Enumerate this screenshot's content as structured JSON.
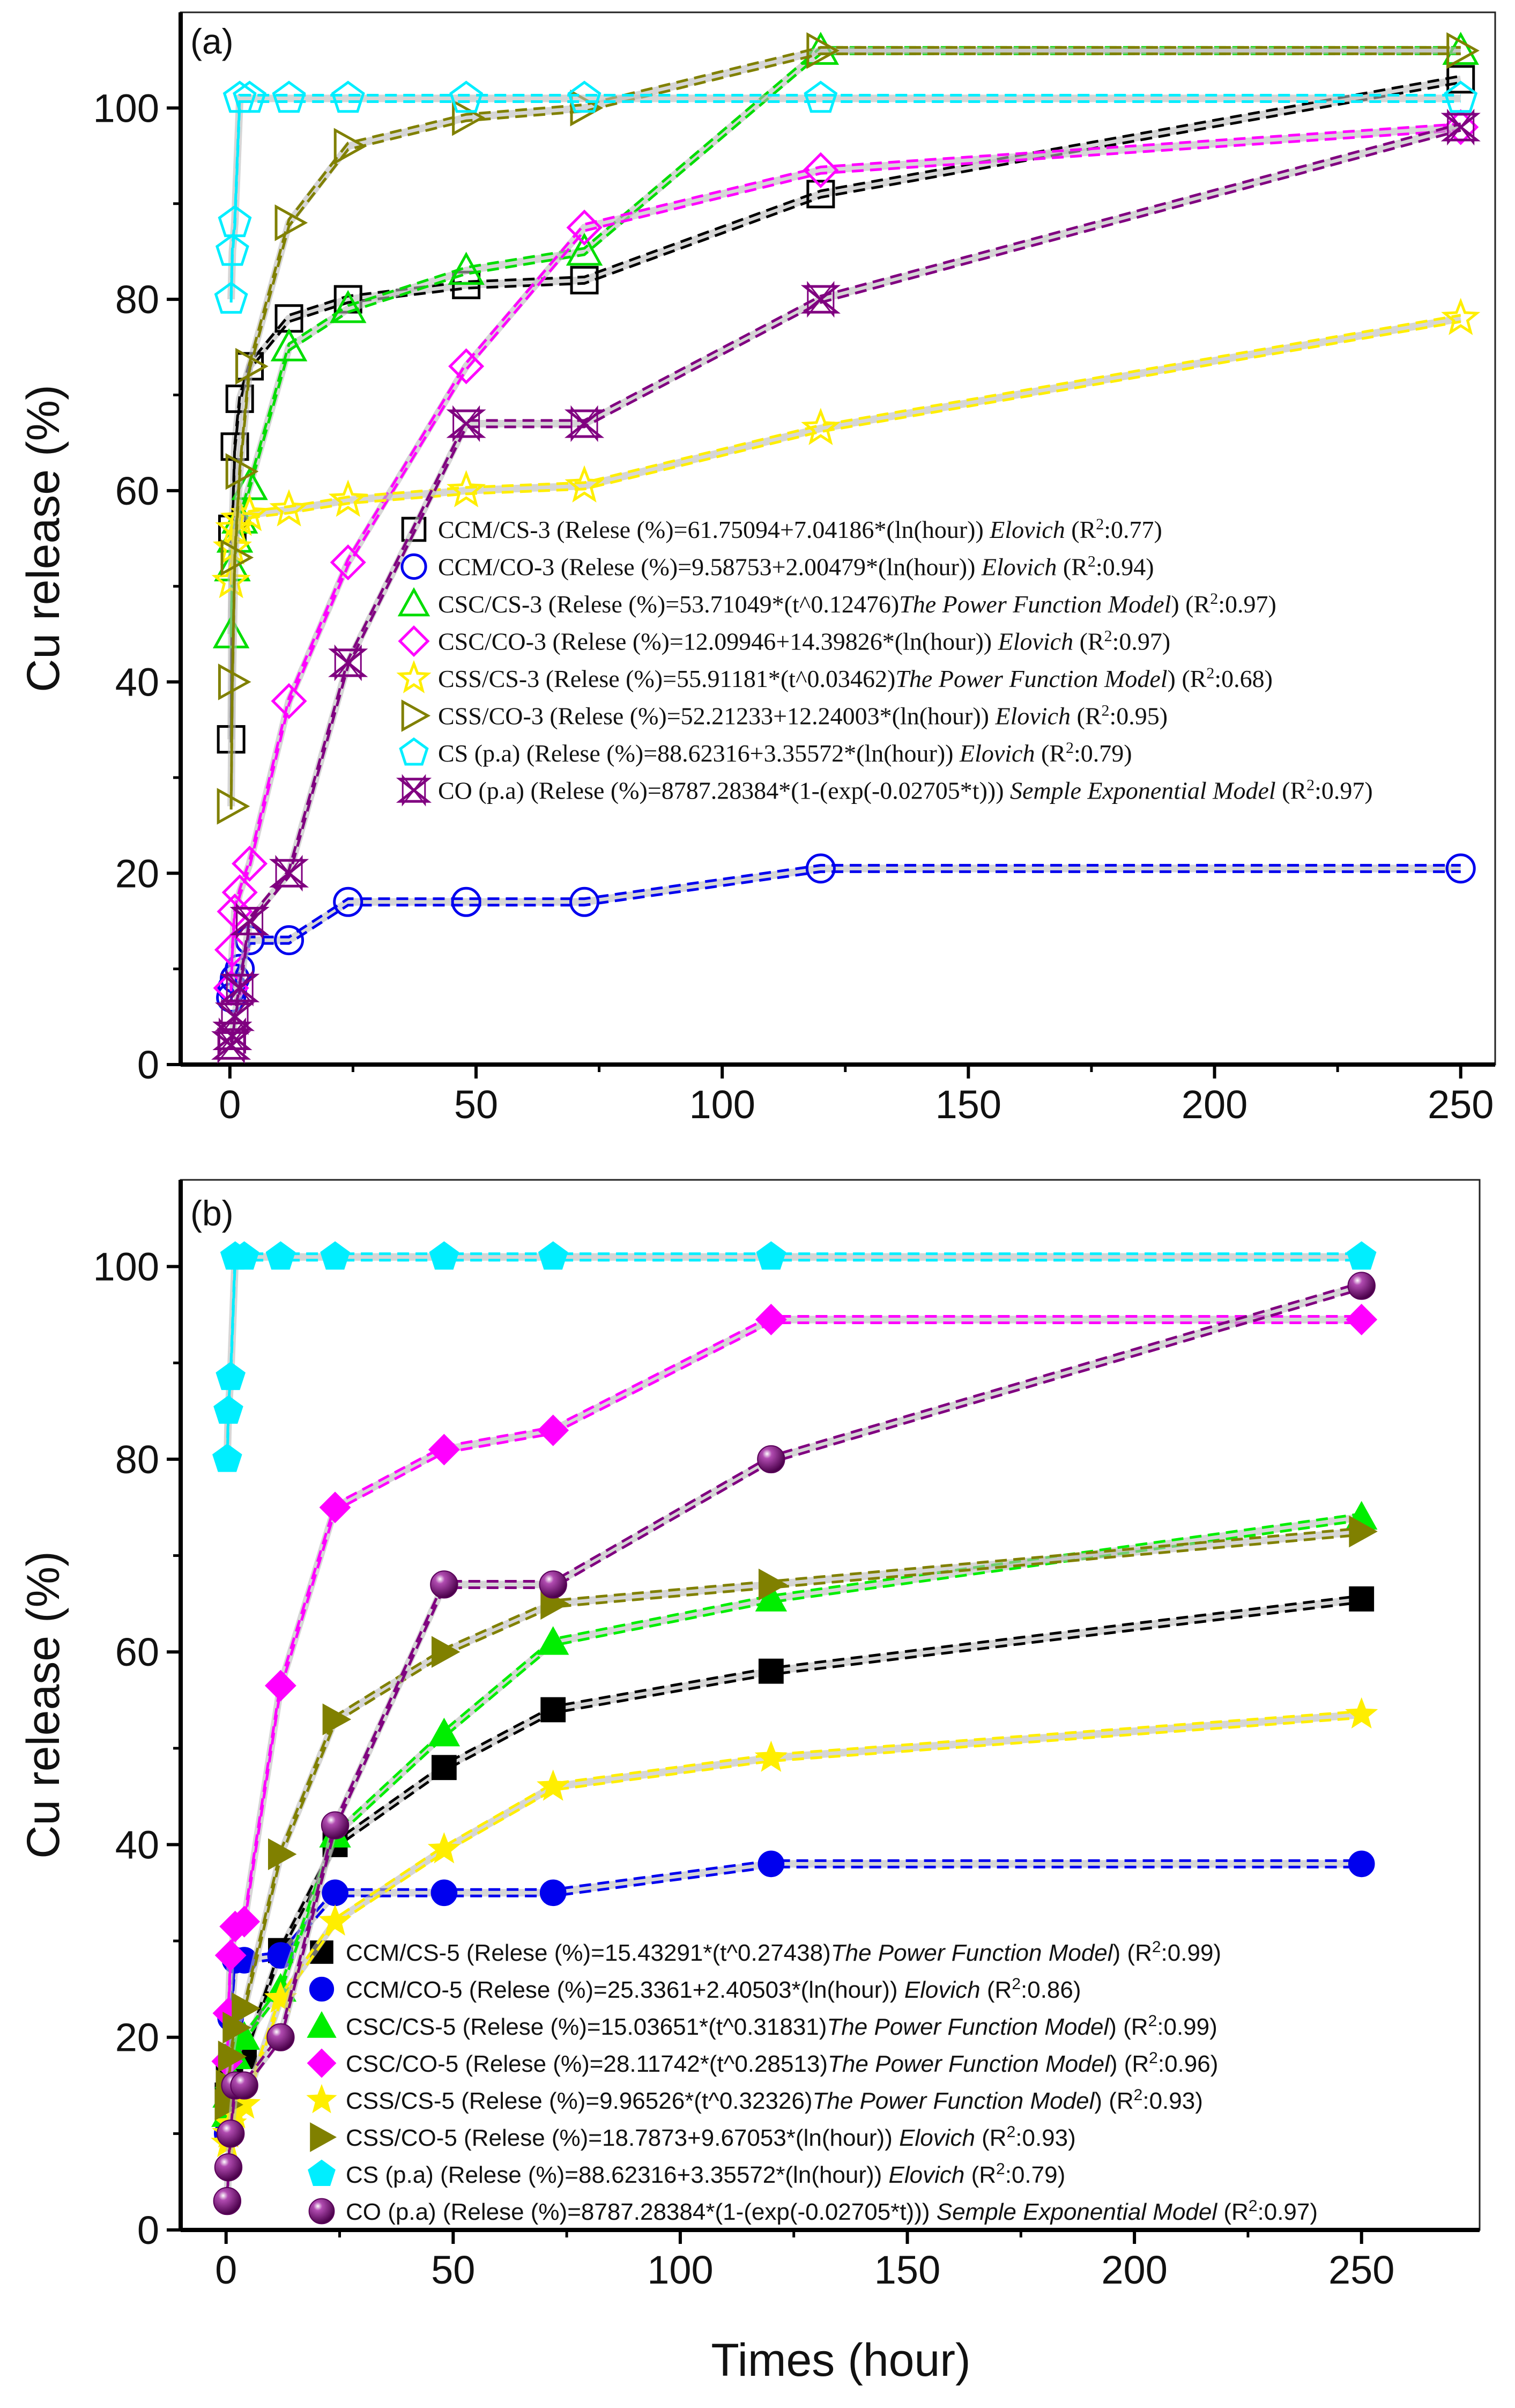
{
  "chart_data": [
    {
      "type": "line",
      "panel_label": "(a)",
      "xlabel": "",
      "ylabel": "Cu release (%)",
      "xlim": [
        -10,
        257
      ],
      "ylim": [
        0,
        110
      ],
      "xticks": [
        0,
        50,
        100,
        150,
        200,
        250
      ],
      "yticks": [
        0,
        20,
        40,
        60,
        80,
        100
      ],
      "grid": false,
      "legend_position": "center-right",
      "series": [
        {
          "name": "CCM/CS-3",
          "color": "#000000",
          "marker": "square",
          "filled": false,
          "x": [
            0.25,
            0.5,
            1,
            2,
            4,
            12,
            24,
            48,
            72,
            120,
            250
          ],
          "y": [
            34,
            56,
            64.6,
            69.6,
            73,
            78,
            80,
            81.5,
            82,
            91,
            103
          ],
          "legend": {
            "prefix": "CCM/CS-3 (Relese (%)=61.75094+7.04186*(ln(hour)) ",
            "model": "Elovich",
            "close": "",
            "r2": "0.77"
          }
        },
        {
          "name": "CCM/CO-3",
          "color": "#0000ee",
          "marker": "circle",
          "filled": false,
          "x": [
            0.25,
            0.5,
            1,
            2,
            4,
            12,
            24,
            48,
            72,
            120,
            250
          ],
          "y": [
            7,
            8,
            9,
            10,
            13,
            13,
            17,
            17,
            17,
            20.5,
            20.5
          ],
          "legend": {
            "prefix": "CCM/CO-3 (Relese (%)=9.58753+2.00479*(ln(hour)) ",
            "model": "Elovich",
            "close": "",
            "r2": "0.94"
          }
        },
        {
          "name": "CSC/CS-3",
          "color": "#00dd00",
          "marker": "triangle-up",
          "filled": false,
          "x": [
            0.25,
            0.5,
            1,
            2,
            4,
            12,
            24,
            48,
            72,
            120,
            250
          ],
          "y": [
            45,
            52,
            55,
            57,
            60.5,
            75,
            79,
            83,
            85,
            106,
            106
          ],
          "legend": {
            "prefix": "CSC/CS-3 (Relese (%)=53.71049*(t^0.12476)",
            "model": "The Power Function Model",
            "close": ")",
            "r2": "0.97"
          }
        },
        {
          "name": "CSC/CO-3",
          "color": "#ff00ff",
          "marker": "diamond",
          "filled": false,
          "x": [
            0.25,
            0.5,
            1,
            2,
            4,
            12,
            24,
            48,
            72,
            120,
            250
          ],
          "y": [
            8,
            12,
            16,
            18,
            21,
            38,
            52.5,
            73,
            87.5,
            93.5,
            98
          ],
          "legend": {
            "prefix": "CSC/CO-3 (Relese (%)=12.09946+14.39826*(ln(hour)) ",
            "model": "Elovich",
            "close": "",
            "r2": "0.97"
          }
        },
        {
          "name": "CSS/CS-3",
          "color": "#ffee00",
          "marker": "star",
          "filled": false,
          "x": [
            0.25,
            0.5,
            1,
            2,
            4,
            12,
            24,
            48,
            72,
            120,
            250
          ],
          "y": [
            50.5,
            54,
            56,
            57,
            57.5,
            58,
            59,
            60,
            60.5,
            66.5,
            78
          ],
          "legend": {
            "prefix": "CSS/CS-3 (Relese (%)=55.91181*(t^0.03462)",
            "model": "The Power Function Model",
            "close": ")",
            "r2": "0.68"
          }
        },
        {
          "name": "CSS/CO-3",
          "color": "#808000",
          "marker": "triangle-right",
          "filled": false,
          "x": [
            0.25,
            0.5,
            1,
            2,
            4,
            12,
            24,
            48,
            72,
            120,
            250
          ],
          "y": [
            27,
            40,
            53,
            62,
            73,
            88,
            96,
            99,
            100,
            106,
            106
          ],
          "legend": {
            "prefix": "CSS/CO-3 (Relese (%)=52.21233+12.24003*(ln(hour)) ",
            "model": "Elovich",
            "close": "",
            "r2": "0.95"
          }
        },
        {
          "name": "CS (p.a)",
          "color": "#00eeff",
          "marker": "pentagon",
          "filled": false,
          "x": [
            0.25,
            0.5,
            1,
            2,
            4,
            12,
            24,
            48,
            72,
            120,
            250
          ],
          "y": [
            80,
            85,
            88,
            101,
            101,
            101,
            101,
            101,
            101,
            101,
            101
          ],
          "legend": {
            "prefix": "CS (p.a) (Relese (%)=88.62316+3.35572*(ln(hour)) ",
            "model": "Elovich",
            "close": "",
            "r2": "0.79"
          }
        },
        {
          "name": "CO (p.a)",
          "color": "#800080",
          "marker": "hourglass",
          "filled": false,
          "x": [
            0.25,
            0.5,
            1,
            2,
            4,
            12,
            24,
            48,
            72,
            120,
            250
          ],
          "y": [
            2,
            3,
            5,
            8,
            15,
            20,
            42,
            67,
            67,
            80,
            98
          ],
          "legend": {
            "prefix": "CO (p.a) (Relese (%)=8787.28384*(1-(exp(-0.02705*t))) ",
            "model": "Semple Exponential Model",
            "close": "",
            "r2": "0.97"
          }
        }
      ]
    },
    {
      "type": "line",
      "panel_label": "(b)",
      "xlabel": "Times (hour)",
      "ylabel": "Cu release (%)",
      "xlim": [
        -10,
        276
      ],
      "ylim": [
        0,
        109
      ],
      "xticks": [
        0,
        50,
        100,
        150,
        200,
        250
      ],
      "yticks": [
        0,
        20,
        40,
        60,
        80,
        100
      ],
      "grid": false,
      "legend_position": "bottom-right",
      "series": [
        {
          "name": "CCM/CS-5",
          "color": "#000000",
          "marker": "square",
          "filled": true,
          "x": [
            0.25,
            0.5,
            1,
            2,
            4,
            12,
            24,
            48,
            72,
            120,
            250
          ],
          "y": [
            14,
            16,
            17,
            18,
            18,
            29,
            40,
            48,
            54,
            58,
            65.5
          ],
          "legend": {
            "prefix": "CCM/CS-5 (Relese (%)=15.43291*(t^0.27438)",
            "model": "The Power Function Model",
            "close": ")",
            "r2": "0.99"
          }
        },
        {
          "name": "CCM/CO-5",
          "color": "#0000ee",
          "marker": "circle",
          "filled": true,
          "x": [
            0.25,
            0.5,
            1,
            2,
            4,
            12,
            24,
            48,
            72,
            120,
            250
          ],
          "y": [
            10,
            14,
            22,
            28,
            28,
            28.5,
            35,
            35,
            35,
            38,
            38
          ],
          "legend": {
            "prefix": "CCM/CO-5 (Relese (%)=25.3361+2.40503*(ln(hour)) ",
            "model": "Elovich",
            "close": "",
            "r2": "0.86"
          }
        },
        {
          "name": "CSC/CS-5",
          "color": "#00ee00",
          "marker": "triangle-up",
          "filled": true,
          "x": [
            0.25,
            0.5,
            1,
            2,
            4,
            12,
            24,
            48,
            72,
            120,
            250
          ],
          "y": [
            12,
            14,
            16,
            18,
            20,
            25,
            41,
            51.5,
            61,
            65.5,
            74
          ],
          "legend": {
            "prefix": "CSC/CS-5 (Relese (%)=15.03651*(t^0.31831)",
            "model": "The Power Function Model",
            "close": ")",
            "r2": "0.99"
          }
        },
        {
          "name": "CSC/CO-5",
          "color": "#ff00ff",
          "marker": "diamond",
          "filled": true,
          "x": [
            0.25,
            0.5,
            1,
            2,
            4,
            12,
            24,
            48,
            72,
            120,
            250
          ],
          "y": [
            17.5,
            22.5,
            28.5,
            31.5,
            32,
            56.5,
            75,
            81,
            83,
            94.5,
            94.5
          ],
          "legend": {
            "prefix": "CSC/CO-5 (Relese (%)=28.11742*(t^0.28513)",
            "model": "The Power Function Model",
            "close": ")",
            "r2": "0.96"
          }
        },
        {
          "name": "CSS/CS-5",
          "color": "#ffee00",
          "marker": "star",
          "filled": true,
          "x": [
            0.25,
            0.5,
            1,
            2,
            4,
            12,
            24,
            48,
            72,
            120,
            250
          ],
          "y": [
            9,
            10,
            11,
            12,
            13,
            24,
            32,
            39.5,
            46,
            49,
            53.5
          ],
          "legend": {
            "prefix": "CSS/CS-5 (Relese (%)=9.96526*(t^0.32326)",
            "model": "The Power Function Model",
            "close": ")",
            "r2": "0.93"
          }
        },
        {
          "name": "CSS/CO-5",
          "color": "#808000",
          "marker": "triangle-right",
          "filled": true,
          "x": [
            0.25,
            0.5,
            1,
            2,
            4,
            12,
            24,
            48,
            72,
            120,
            250
          ],
          "y": [
            13,
            15,
            18,
            21,
            23,
            39,
            53,
            60,
            65,
            67,
            72.5
          ],
          "legend": {
            "prefix": "CSS/CO-5 (Relese (%)=18.7873+9.67053*(ln(hour)) ",
            "model": "Elovich",
            "close": "",
            "r2": "0.93"
          }
        },
        {
          "name": "CS (p.a)",
          "color": "#00eeff",
          "marker": "pentagon",
          "filled": true,
          "x": [
            0.25,
            0.5,
            1,
            2,
            4,
            12,
            24,
            48,
            72,
            120,
            250
          ],
          "y": [
            80,
            85,
            88.5,
            101,
            101,
            101,
            101,
            101,
            101,
            101,
            101
          ],
          "legend": {
            "prefix": "CS (p.a) (Relese (%)=88.62316+3.35572*(ln(hour)) ",
            "model": "Elovich",
            "close": "",
            "r2": "0.79"
          }
        },
        {
          "name": "CO (p.a)",
          "color": "#800080",
          "marker": "sphere",
          "filled": true,
          "x": [
            0.25,
            0.5,
            1,
            2,
            4,
            12,
            24,
            48,
            72,
            120,
            250
          ],
          "y": [
            3,
            6.5,
            10,
            15,
            15,
            20,
            42,
            67,
            67,
            80,
            98
          ],
          "legend": {
            "prefix": "CO (p.a) (Relese (%)=8787.28384*(1-(exp(-0.02705*t))) ",
            "model": "Semple Exponential Model",
            "close": "",
            "r2": "0.97"
          }
        }
      ]
    }
  ]
}
